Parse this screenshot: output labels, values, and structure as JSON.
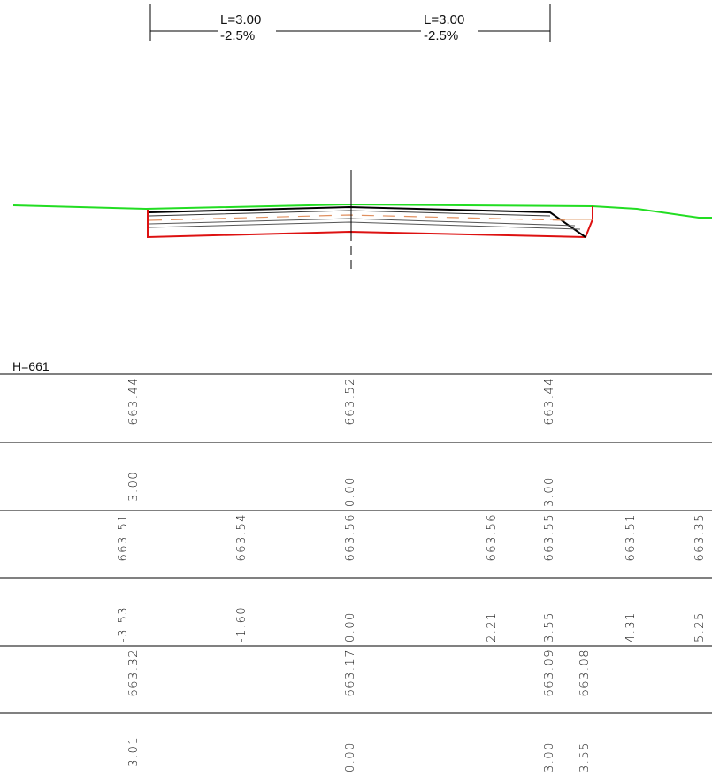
{
  "dimensions": [
    {
      "length": "L=3.00",
      "slope": "-2.5%"
    },
    {
      "length": "L=3.00",
      "slope": "-2.5%"
    }
  ],
  "datum": "H=661",
  "rows": [
    [
      "663.44",
      "663.52",
      "663.44"
    ],
    [
      "-3.00",
      "0.00",
      "3.00"
    ],
    [
      "663.51",
      "663.54",
      "663.56",
      "663.56",
      "663.55",
      "663.51",
      "663.35"
    ],
    [
      "-3.53",
      "-1.60",
      "0.00",
      "2.21",
      "3.55",
      "4.31",
      "5.25"
    ],
    [
      "663.32",
      "663.17",
      "663.09",
      "663.08"
    ],
    [
      "-3.01",
      "0.00",
      "3.00",
      "3.55"
    ]
  ]
}
